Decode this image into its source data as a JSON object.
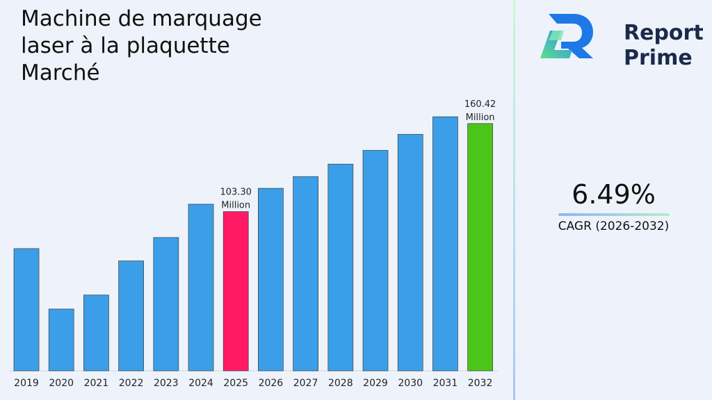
{
  "title": "Machine de marquage\nlaser à la plaquette\nMarché",
  "brand": {
    "line1": "Report",
    "line2": "Prime"
  },
  "cagr": {
    "value": "6.49%",
    "label": "CAGR (2026-2032)"
  },
  "colors": {
    "bar_default": "#3a9fe8",
    "bar_highlight_2025": "#ff1a66",
    "bar_highlight_2032": "#4cc51a",
    "brand_dark": "#1b2a4a"
  },
  "chart_data": {
    "type": "bar",
    "categories": [
      "2019",
      "2020",
      "2021",
      "2022",
      "2023",
      "2024",
      "2025",
      "2026",
      "2027",
      "2028",
      "2029",
      "2030",
      "2031",
      "2032"
    ],
    "values": [
      79.3,
      40.1,
      49.2,
      71.3,
      86.5,
      108.1,
      103.3,
      118.4,
      126.0,
      134.1,
      143.0,
      153.4,
      164.8,
      160.42
    ],
    "data_labels": [
      {
        "index": 6,
        "line1": "103.30",
        "line2": "Million"
      },
      {
        "index": 13,
        "line1": "160.42",
        "line2": "Million"
      }
    ],
    "grid": false,
    "legend": "none"
  }
}
